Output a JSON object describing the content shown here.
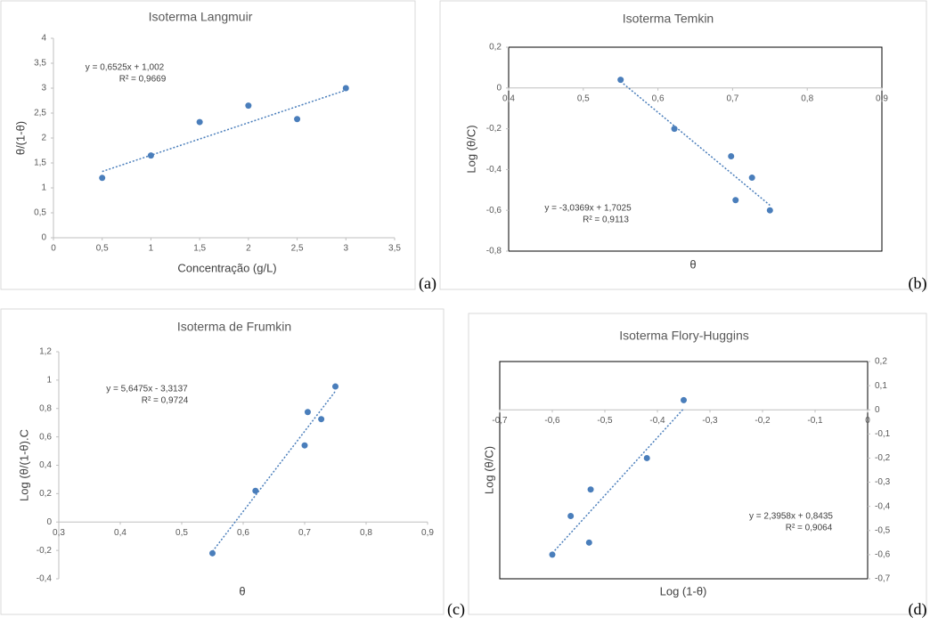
{
  "chart_data": [
    {
      "type": "scatter",
      "title": "Isoterma Langmuir",
      "x_label": "Concentração (g/L)",
      "y_label": "θ/(1-θ)",
      "panel_label": "(a)",
      "x": [
        0.5,
        1,
        1.5,
        2,
        2.5,
        3
      ],
      "values": [
        1.2,
        1.65,
        2.32,
        2.65,
        2.38,
        3.0
      ],
      "color": "#4a7ebb",
      "trendline": {
        "slope": 0.6525,
        "intercept": 1.002
      },
      "annotations": [
        "y = 0,6525x + 1,002",
        "R² = 0,9669"
      ],
      "xlim": [
        0,
        3.5
      ],
      "xticks": [
        0,
        {
          "value": 0.5,
          "label": "0,5"
        },
        1,
        {
          "value": 1.5,
          "label": "1,5"
        },
        2,
        {
          "value": 2.5,
          "label": "2,5"
        },
        3,
        {
          "value": 3.5,
          "label": "3,5"
        }
      ],
      "ylim": [
        0,
        4
      ],
      "yticks": [
        0,
        {
          "value": 0.5,
          "label": "0,5"
        },
        1,
        {
          "value": 1.5,
          "label": "1,5"
        },
        2,
        {
          "value": 2.5,
          "label": "2,5"
        },
        3,
        {
          "value": 3.5,
          "label": "3,5"
        },
        4
      ],
      "frame": false,
      "y_axis_side": "left"
    },
    {
      "type": "scatter",
      "title": "Isoterma Temkin",
      "x_label": "θ",
      "y_label": "Log (θ/C)",
      "panel_label": "(b)",
      "x": [
        0.55,
        0.622,
        0.698,
        0.726,
        0.704,
        0.75
      ],
      "values": [
        0.04,
        -0.2,
        -0.335,
        -0.44,
        -0.55,
        -0.6
      ],
      "color": "#4a7ebb",
      "trendline": {
        "slope": -3.0369,
        "intercept": 1.7025
      },
      "annotations": [
        "y = -3,0369x + 1,7025",
        "R² = 0,9113"
      ],
      "xlim": [
        0.4,
        0.9
      ],
      "xticks": [
        {
          "value": 0.4,
          "label": "0,4"
        },
        {
          "value": 0.5,
          "label": "0,5"
        },
        {
          "value": 0.6,
          "label": "0,6"
        },
        {
          "value": 0.7,
          "label": "0,7"
        },
        {
          "value": 0.8,
          "label": "0,8"
        },
        {
          "value": 0.9,
          "label": "0,9"
        }
      ],
      "ylim": [
        -0.8,
        0.2
      ],
      "yticks": [
        {
          "value": -0.8,
          "label": "-0,8"
        },
        {
          "value": -0.6,
          "label": "-0,6"
        },
        {
          "value": -0.4,
          "label": "-0,4"
        },
        {
          "value": -0.2,
          "label": "-0,2"
        },
        0,
        {
          "value": 0.2,
          "label": "0,2"
        }
      ],
      "frame": true,
      "y_axis_side": "left"
    },
    {
      "type": "scatter",
      "title": "Isoterma de Frumkin",
      "x_label": "θ",
      "y_label": "Log (θ/(1-θ).C",
      "panel_label": "(c)",
      "x": [
        0.55,
        0.62,
        0.7,
        0.705,
        0.727,
        0.75
      ],
      "values": [
        -0.22,
        0.22,
        0.54,
        0.775,
        0.725,
        0.955
      ],
      "color": "#4a7ebb",
      "trendline": {
        "slope": 5.6475,
        "intercept": -3.3137
      },
      "annotations": [
        "y = 5,6475x - 3,3137",
        "R² = 0,9724"
      ],
      "xlim": [
        0.3,
        0.9
      ],
      "xticks": [
        {
          "value": 0.3,
          "label": "0,3"
        },
        {
          "value": 0.4,
          "label": "0,4"
        },
        {
          "value": 0.5,
          "label": "0,5"
        },
        {
          "value": 0.6,
          "label": "0,6"
        },
        {
          "value": 0.7,
          "label": "0,7"
        },
        {
          "value": 0.8,
          "label": "0,8"
        },
        {
          "value": 0.9,
          "label": "0,9"
        }
      ],
      "ylim": [
        -0.4,
        1.2
      ],
      "yticks": [
        {
          "value": -0.4,
          "label": "-0,4"
        },
        {
          "value": -0.2,
          "label": "-0,2"
        },
        0,
        {
          "value": 0.2,
          "label": "0,2"
        },
        {
          "value": 0.4,
          "label": "0,4"
        },
        {
          "value": 0.6,
          "label": "0,6"
        },
        {
          "value": 0.8,
          "label": "0,8"
        },
        1,
        {
          "value": 1.2,
          "label": "1,2"
        }
      ],
      "frame": false,
      "y_axis_side": "left"
    },
    {
      "type": "scatter",
      "title": "Isoterma Flory-Huggins",
      "x_label": "Log (1-θ)",
      "y_label": "Log (θ/C)",
      "panel_label": "(d)",
      "x": [
        -0.6,
        -0.565,
        -0.527,
        -0.53,
        -0.42,
        -0.35
      ],
      "values": [
        -0.6,
        -0.44,
        -0.33,
        -0.55,
        -0.2,
        0.04
      ],
      "color": "#4a7ebb",
      "trendline": {
        "slope": 2.3958,
        "intercept": 0.8435
      },
      "annotations": [
        "y = 2,3958x + 0,8435",
        "R² = 0,9064"
      ],
      "xlim": [
        -0.7,
        0
      ],
      "xticks": [
        {
          "value": -0.7,
          "label": "-0,7"
        },
        {
          "value": -0.6,
          "label": "-0,6"
        },
        {
          "value": -0.5,
          "label": "-0,5"
        },
        {
          "value": -0.4,
          "label": "-0,4"
        },
        {
          "value": -0.3,
          "label": "-0,3"
        },
        {
          "value": -0.2,
          "label": "-0,2"
        },
        {
          "value": -0.1,
          "label": "-0,1"
        },
        0
      ],
      "ylim": [
        -0.7,
        0.2
      ],
      "yticks": [
        {
          "value": -0.7,
          "label": "-0,7"
        },
        {
          "value": -0.6,
          "label": "-0,6"
        },
        {
          "value": -0.5,
          "label": "-0,5"
        },
        {
          "value": -0.4,
          "label": "-0,4"
        },
        {
          "value": -0.3,
          "label": "-0,3"
        },
        {
          "value": -0.2,
          "label": "-0,2"
        },
        {
          "value": -0.1,
          "label": "-0,1"
        },
        0,
        {
          "value": 0.1,
          "label": "0,1"
        },
        {
          "value": 0.2,
          "label": "0,2"
        }
      ],
      "frame": true,
      "y_axis_side": "right"
    }
  ]
}
